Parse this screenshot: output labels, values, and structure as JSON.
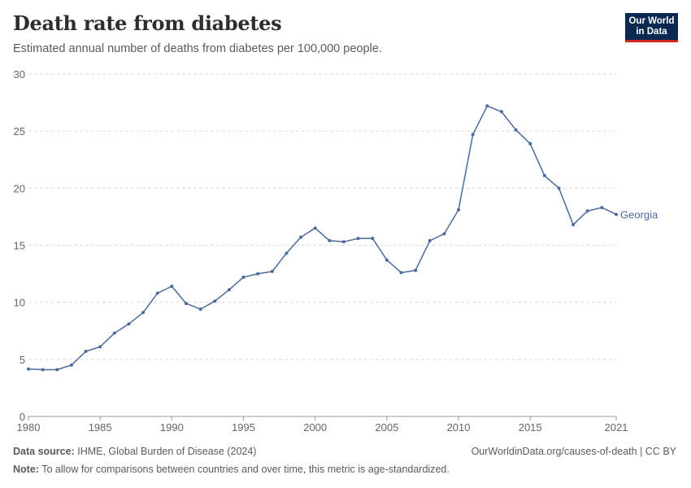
{
  "header": {
    "title": "Death rate from diabetes",
    "subtitle": "Estimated annual number of deaths from diabetes per 100,000 people.",
    "logo_line1": "Our World",
    "logo_line2": "in Data"
  },
  "footer": {
    "source_label": "Data source:",
    "source_text": "IHME, Global Burden of Disease (2024)",
    "url": "OurWorldinData.org/causes-of-death | CC BY",
    "note_label": "Note:",
    "note_text": "To allow for comparisons between countries and over time, this metric is age-standardized."
  },
  "colors": {
    "series": "#4c6a9c",
    "grid": "#dddddd",
    "axis": "#666666"
  },
  "chart_data": {
    "type": "line",
    "title": "Death rate from diabetes",
    "subtitle": "Estimated annual number of deaths from diabetes per 100,000 people.",
    "xlim": [
      1980,
      2021
    ],
    "ylim": [
      0,
      30
    ],
    "x_ticks": [
      "1980",
      "1985",
      "1990",
      "1995",
      "2000",
      "2005",
      "2010",
      "2015",
      "2021"
    ],
    "y_ticks": [
      "0",
      "5",
      "10",
      "15",
      "20",
      "25",
      "30"
    ],
    "grid": "horizontal dashed",
    "legend": "inline label at line end",
    "series": [
      {
        "name": "Georgia",
        "x": [
          1980,
          1981,
          1982,
          1983,
          1984,
          1985,
          1986,
          1987,
          1988,
          1989,
          1990,
          1991,
          1992,
          1993,
          1994,
          1995,
          1996,
          1997,
          1998,
          1999,
          2000,
          2001,
          2002,
          2003,
          2004,
          2005,
          2006,
          2007,
          2008,
          2009,
          2010,
          2011,
          2012,
          2013,
          2014,
          2015,
          2016,
          2017,
          2018,
          2019,
          2020,
          2021
        ],
        "values": [
          4.15,
          4.1,
          4.1,
          4.5,
          5.7,
          6.1,
          7.3,
          8.1,
          9.1,
          10.8,
          11.4,
          9.9,
          9.4,
          10.1,
          11.1,
          12.2,
          12.5,
          12.7,
          14.3,
          15.7,
          16.5,
          15.4,
          15.3,
          15.6,
          15.6,
          13.7,
          12.6,
          12.8,
          15.4,
          16.0,
          18.1,
          24.7,
          27.2,
          26.7,
          25.1,
          23.9,
          21.1,
          20.0,
          16.8,
          18.0,
          18.3,
          17.7
        ]
      }
    ]
  }
}
